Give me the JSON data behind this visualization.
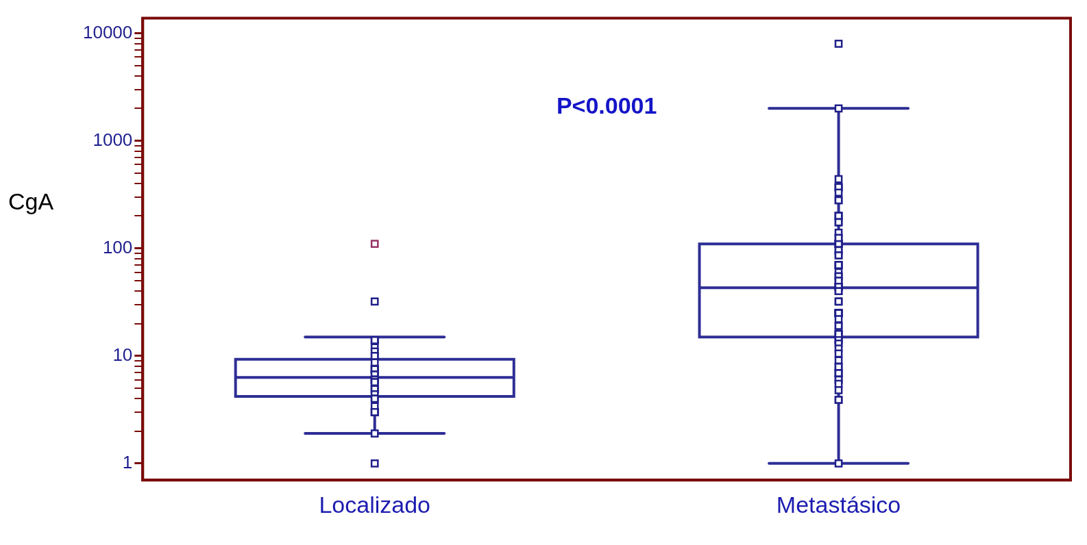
{
  "chart_data": {
    "type": "box",
    "ylabel": "CgA",
    "categories": [
      "Localizado",
      "Metastásico"
    ],
    "log": true,
    "grid": false,
    "legend": false,
    "ylim": [
      0.72,
      13800
    ],
    "yticks": [
      1,
      {
        "value": 2,
        "label": null
      },
      {
        "value": 3,
        "label": null
      },
      {
        "value": 4,
        "label": null
      },
      {
        "value": 5,
        "label": null
      },
      {
        "value": 6,
        "label": null
      },
      {
        "value": 7,
        "label": null
      },
      {
        "value": 8,
        "label": null
      },
      {
        "value": 9,
        "label": null
      },
      10,
      {
        "value": 20,
        "label": null
      },
      {
        "value": 30,
        "label": null
      },
      {
        "value": 40,
        "label": null
      },
      {
        "value": 50,
        "label": null
      },
      {
        "value": 60,
        "label": null
      },
      {
        "value": 70,
        "label": null
      },
      {
        "value": 80,
        "label": null
      },
      {
        "value": 90,
        "label": null
      },
      100,
      {
        "value": 200,
        "label": null
      },
      {
        "value": 300,
        "label": null
      },
      {
        "value": 400,
        "label": null
      },
      {
        "value": 500,
        "label": null
      },
      {
        "value": 600,
        "label": null
      },
      {
        "value": 700,
        "label": null
      },
      {
        "value": 800,
        "label": null
      },
      {
        "value": 900,
        "label": null
      },
      1000,
      {
        "value": 2000,
        "label": null
      },
      {
        "value": 3000,
        "label": null
      },
      {
        "value": 4000,
        "label": null
      },
      {
        "value": 5000,
        "label": null
      },
      {
        "value": 6000,
        "label": null
      },
      {
        "value": 7000,
        "label": null
      },
      {
        "value": 8000,
        "label": null
      },
      {
        "value": 9000,
        "label": null
      },
      10000
    ],
    "annotations": [
      "P<0.0001"
    ],
    "series": [
      {
        "type": "box",
        "color": "#2e2e96",
        "boxes": [
          {
            "low": 1.9,
            "q1": 4.2,
            "median": 6.3,
            "q3": 9.3,
            "high": 15
          },
          {
            "low": 1,
            "q1": 15,
            "median": 43,
            "q3": 110,
            "high": 2000
          }
        ]
      },
      {
        "type": "scatter",
        "color": "#20208a",
        "marker": "square",
        "x": [
          "Localizado",
          "Localizado",
          "Localizado",
          "Localizado",
          "Localizado",
          "Localizado",
          "Localizado",
          "Localizado",
          "Localizado",
          "Localizado",
          "Localizado",
          "Localizado",
          "Localizado",
          "Localizado",
          "Localizado",
          "Localizado",
          "Localizado",
          "Localizado",
          "Localizado",
          "Localizado",
          "Localizado",
          "Localizado",
          "Localizado",
          "Localizado",
          "Localizado",
          "Localizado",
          "Localizado",
          "Localizado",
          "Localizado",
          "Localizado",
          "Localizado",
          "Localizado",
          "Localizado",
          "Localizado",
          "Localizado",
          "Localizado",
          "Localizado",
          "Localizado",
          "Metastásico",
          "Metastásico",
          "Metastásico",
          "Metastásico",
          "Metastásico",
          "Metastásico",
          "Metastásico",
          "Metastásico",
          "Metastásico",
          "Metastásico",
          "Metastásico",
          "Metastásico",
          "Metastásico",
          "Metastásico",
          "Metastásico",
          "Metastásico",
          "Metastásico",
          "Metastásico",
          "Metastásico",
          "Metastásico",
          "Metastásico",
          "Metastásico",
          "Metastásico",
          "Metastásico",
          "Metastásico",
          "Metastásico",
          "Metastásico",
          "Metastásico",
          "Metastásico",
          "Metastásico",
          "Metastásico",
          "Metastásico",
          "Metastásico",
          "Metastásico",
          "Metastásico",
          "Metastásico",
          "Metastásico",
          "Metastásico",
          "Metastásico",
          "Metastásico",
          "Metastásico",
          "Metastásico",
          "Metastásico",
          "Metastásico",
          "Metastásico",
          "Metastásico",
          "Metastásico",
          "Metastásico",
          "Metastásico",
          "Metastásico",
          "Metastásico",
          "Metastásico",
          "Metastásico",
          "Metastásico",
          "Metastásico",
          "Metastásico",
          "Metastásico",
          "Metastásico",
          "Metastásico",
          "Metastásico",
          "Metastásico",
          "Metastásico",
          "Metastásico",
          "Metastásico",
          "Metastásico",
          "Metastásico",
          "Metastásico",
          "Metastásico",
          "Metastásico",
          "Metastásico",
          "Metastásico",
          "Metastásico",
          "Metastásico",
          "Metastásico",
          "Metastásico",
          "Metastásico",
          "Metastásico"
        ],
        "values": [
          32,
          14,
          14,
          14,
          12,
          11,
          10,
          10,
          8.7,
          7.5,
          7.5,
          7.5,
          7.5,
          7.5,
          6.7,
          6.7,
          6.7,
          6,
          6,
          6,
          6,
          6,
          5.7,
          5.7,
          4.9,
          4.9,
          4.9,
          4.9,
          4.4,
          4,
          4,
          3.4,
          3,
          3,
          3,
          3,
          1.9,
          1,
          8000,
          2000,
          440,
          370,
          370,
          370,
          330,
          280,
          280,
          200,
          200,
          200,
          175,
          175,
          140,
          110,
          110,
          110,
          110,
          110,
          125,
          125,
          96,
          96,
          86,
          86,
          70,
          70,
          70,
          70,
          60,
          55,
          55,
          50,
          50,
          44,
          44,
          44,
          44,
          44,
          40,
          40,
          32,
          32,
          25,
          25,
          25,
          25,
          25,
          25,
          25,
          22,
          19,
          19,
          16,
          16,
          16,
          16,
          14,
          14,
          14,
          13,
          11.7,
          10.5,
          9.1,
          7.9,
          7.9,
          6.9,
          6.9,
          6.9,
          6,
          6,
          5.5,
          4.8,
          3.9,
          3.9,
          1
        ]
      },
      {
        "type": "scatter",
        "color": "#993366",
        "marker": "square",
        "x": [
          "Localizado"
        ],
        "values": [
          110
        ]
      }
    ]
  }
}
